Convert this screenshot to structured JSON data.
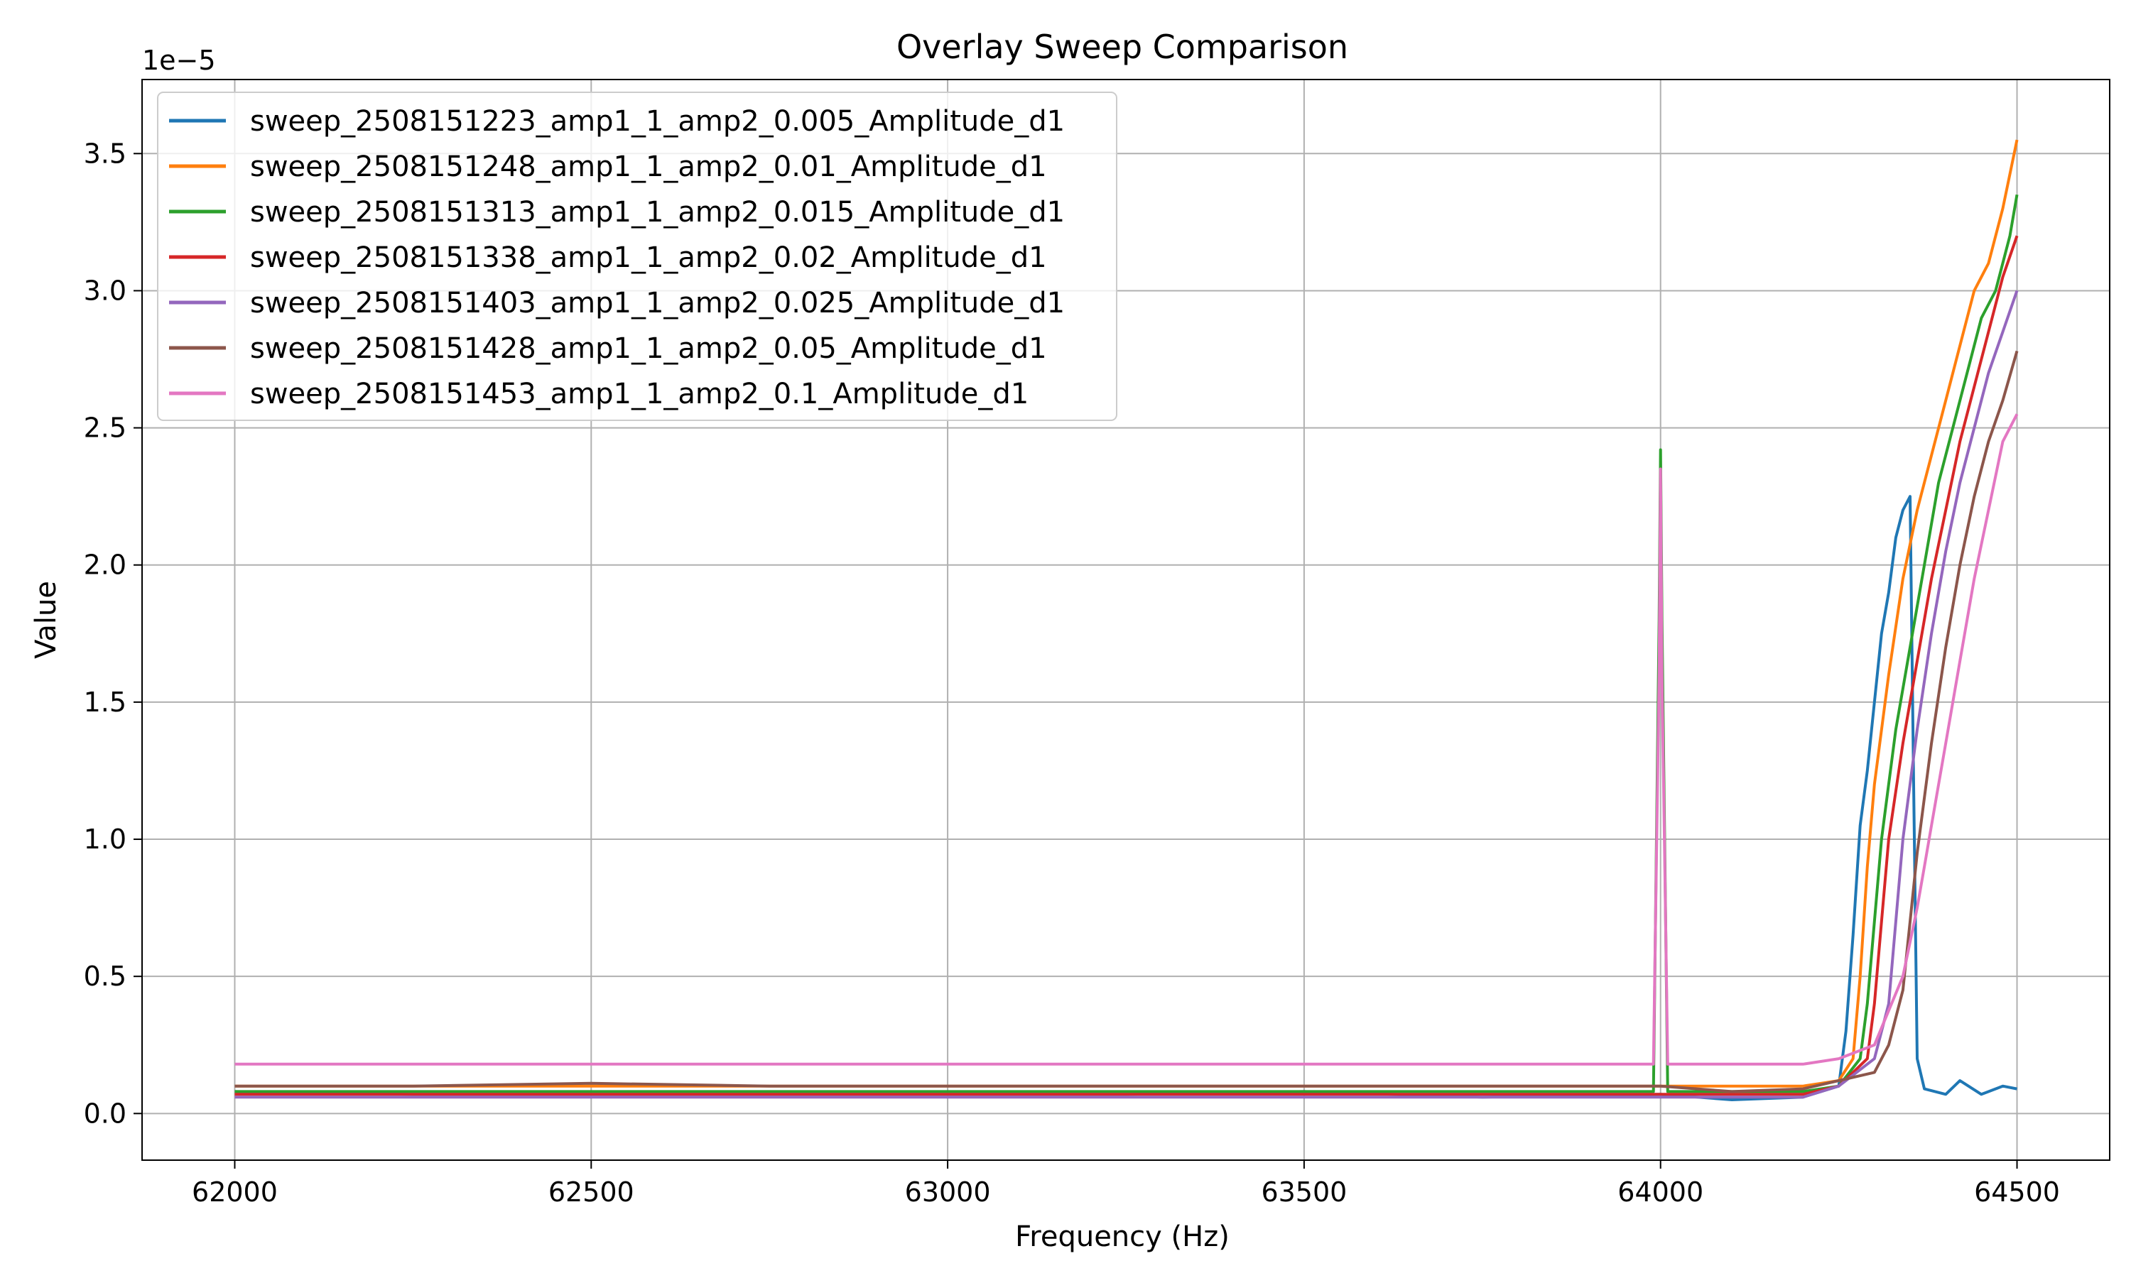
{
  "chart_data": {
    "type": "line",
    "title": "Overlay Sweep Comparison",
    "xlabel": "Frequency (Hz)",
    "ylabel": "Value",
    "y_offset_text": "1e−5",
    "y_scale_factor": 1e-05,
    "xlim": [
      61870,
      64630
    ],
    "ylim": [
      -0.17,
      3.77
    ],
    "xticks": [
      62000,
      62500,
      63000,
      63500,
      64000,
      64500
    ],
    "yticks": [
      0.0,
      0.5,
      1.0,
      1.5,
      2.0,
      2.5,
      3.0,
      3.5
    ],
    "grid": true,
    "legend_position": "upper-left",
    "series": [
      {
        "name": "sweep_2508151223_amp1_1_amp2_0.005_Amplitude_d1",
        "color": "#1f77b4",
        "x": [
          62000,
          62250,
          62500,
          62750,
          63000,
          63250,
          63500,
          63750,
          64000,
          64100,
          64200,
          64250,
          64260,
          64270,
          64280,
          64290,
          64300,
          64310,
          64320,
          64330,
          64340,
          64350,
          64355,
          64360,
          64370,
          64400,
          64420,
          64450,
          64480,
          64500
        ],
        "y": [
          0.08,
          0.07,
          0.07,
          0.07,
          0.07,
          0.07,
          0.08,
          0.06,
          0.07,
          0.05,
          0.06,
          0.1,
          0.3,
          0.65,
          1.05,
          1.25,
          1.5,
          1.75,
          1.9,
          2.1,
          2.2,
          2.25,
          1.2,
          0.2,
          0.09,
          0.07,
          0.12,
          0.07,
          0.1,
          0.09
        ]
      },
      {
        "name": "sweep_2508151248_amp1_1_amp2_0.01_Amplitude_d1",
        "color": "#ff7f0e",
        "x": [
          62000,
          62250,
          62500,
          62750,
          63000,
          63250,
          63500,
          63750,
          64000,
          64100,
          64200,
          64250,
          64270,
          64280,
          64290,
          64300,
          64320,
          64340,
          64360,
          64380,
          64400,
          64420,
          64440,
          64460,
          64480,
          64500
        ],
        "y": [
          0.1,
          0.1,
          0.1,
          0.1,
          0.1,
          0.1,
          0.1,
          0.1,
          0.1,
          0.1,
          0.1,
          0.12,
          0.2,
          0.5,
          0.9,
          1.2,
          1.6,
          1.95,
          2.2,
          2.4,
          2.6,
          2.8,
          3.0,
          3.1,
          3.3,
          3.55
        ]
      },
      {
        "name": "sweep_2508151313_amp1_1_amp2_0.015_Amplitude_d1",
        "color": "#2ca02c",
        "x": [
          62000,
          62250,
          62500,
          62750,
          63000,
          63250,
          63500,
          63750,
          63990,
          63998,
          64000,
          64002,
          64010,
          64100,
          64200,
          64250,
          64280,
          64290,
          64300,
          64310,
          64330,
          64350,
          64370,
          64390,
          64410,
          64430,
          64450,
          64470,
          64490,
          64500
        ],
        "y": [
          0.08,
          0.08,
          0.08,
          0.08,
          0.08,
          0.08,
          0.08,
          0.08,
          0.08,
          1.8,
          2.42,
          1.8,
          0.08,
          0.08,
          0.08,
          0.1,
          0.2,
          0.4,
          0.7,
          1.0,
          1.4,
          1.7,
          2.0,
          2.3,
          2.5,
          2.7,
          2.9,
          3.0,
          3.2,
          3.35
        ]
      },
      {
        "name": "sweep_2508151338_amp1_1_amp2_0.02_Amplitude_d1",
        "color": "#d62728",
        "x": [
          62000,
          62250,
          62500,
          62750,
          63000,
          63250,
          63500,
          63750,
          64000,
          64100,
          64200,
          64250,
          64290,
          64300,
          64310,
          64320,
          64340,
          64360,
          64380,
          64400,
          64420,
          64440,
          64460,
          64480,
          64500
        ],
        "y": [
          0.07,
          0.07,
          0.07,
          0.07,
          0.07,
          0.07,
          0.07,
          0.07,
          0.07,
          0.07,
          0.07,
          0.1,
          0.2,
          0.4,
          0.7,
          1.0,
          1.35,
          1.65,
          1.95,
          2.2,
          2.45,
          2.65,
          2.85,
          3.05,
          3.2
        ]
      },
      {
        "name": "sweep_2508151403_amp1_1_amp2_0.025_Amplitude_d1",
        "color": "#9467bd",
        "x": [
          62000,
          62250,
          62500,
          62750,
          63000,
          63250,
          63500,
          63750,
          64000,
          64100,
          64200,
          64250,
          64300,
          64320,
          64330,
          64340,
          64360,
          64380,
          64400,
          64420,
          64440,
          64460,
          64480,
          64500
        ],
        "y": [
          0.06,
          0.06,
          0.06,
          0.06,
          0.06,
          0.06,
          0.06,
          0.06,
          0.06,
          0.06,
          0.06,
          0.1,
          0.2,
          0.4,
          0.7,
          1.0,
          1.4,
          1.75,
          2.05,
          2.3,
          2.5,
          2.7,
          2.85,
          3.0
        ]
      },
      {
        "name": "sweep_2508151428_amp1_1_amp2_0.05_Amplitude_d1",
        "color": "#8c564b",
        "x": [
          62000,
          62250,
          62500,
          62750,
          63000,
          63250,
          63500,
          63750,
          64000,
          64100,
          64200,
          64250,
          64300,
          64320,
          64340,
          64350,
          64360,
          64380,
          64400,
          64420,
          64440,
          64460,
          64480,
          64500
        ],
        "y": [
          0.1,
          0.1,
          0.11,
          0.1,
          0.1,
          0.1,
          0.1,
          0.1,
          0.1,
          0.08,
          0.09,
          0.12,
          0.15,
          0.25,
          0.45,
          0.7,
          0.95,
          1.35,
          1.7,
          2.0,
          2.25,
          2.45,
          2.6,
          2.78
        ]
      },
      {
        "name": "sweep_2508151453_amp1_1_amp2_0.1_Amplitude_d1",
        "color": "#e377c2",
        "x": [
          62000,
          62250,
          62500,
          62750,
          63000,
          63250,
          63500,
          63750,
          63990,
          63998,
          64000,
          64002,
          64010,
          64100,
          64200,
          64250,
          64300,
          64340,
          64360,
          64370,
          64380,
          64400,
          64420,
          64440,
          64460,
          64480,
          64500
        ],
        "y": [
          0.18,
          0.18,
          0.18,
          0.18,
          0.18,
          0.18,
          0.18,
          0.18,
          0.18,
          1.6,
          2.35,
          1.6,
          0.18,
          0.18,
          0.18,
          0.2,
          0.25,
          0.5,
          0.75,
          0.9,
          1.05,
          1.35,
          1.65,
          1.95,
          2.2,
          2.45,
          2.55
        ]
      }
    ]
  }
}
